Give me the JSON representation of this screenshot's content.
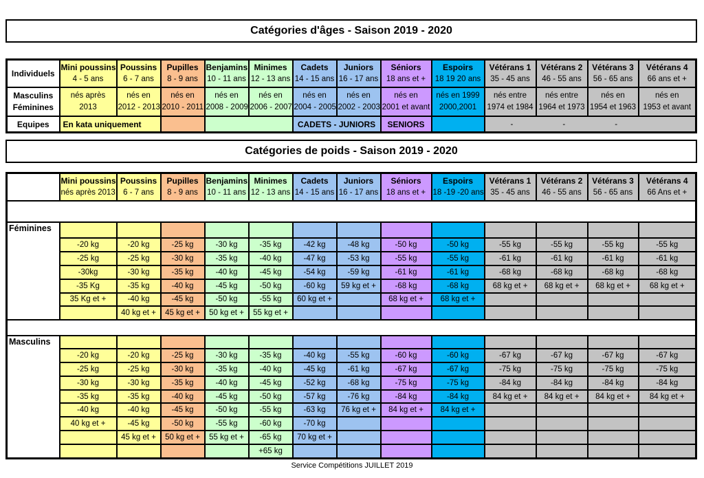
{
  "page": {
    "title_ages": "Catégories d'âges - Saison 2019 - 2020",
    "title_poids": "Catégories de poids - Saison 2019 - 2020",
    "footer": "Service Compétitions JUILLET 2019"
  },
  "colors": {
    "yellow": "#FFFF99",
    "orange": "#FABF8F",
    "green": "#CCFFCC",
    "blue": "#9DC3F0",
    "purple": "#CC99FF",
    "cyan": "#00B0F0",
    "gray": "#C3C3C3",
    "white": "#FFFFFF",
    "border": "#000000"
  },
  "columns": [
    {
      "name": "Mini poussins",
      "color": "yellow",
      "age": "4 - 5 ans",
      "born": [
        "nés après",
        "2013"
      ],
      "poids_sub": "nés après 2013"
    },
    {
      "name": "Poussins",
      "color": "yellow",
      "age": "6 - 7 ans",
      "born": [
        "nés en",
        "2012 - 2013"
      ],
      "poids_sub": "6 - 7 ans"
    },
    {
      "name": "Pupilles",
      "color": "orange",
      "age": "8 - 9 ans",
      "born": [
        "nés en",
        "2010 - 2011"
      ],
      "poids_sub": "8 - 9 ans"
    },
    {
      "name": "Benjamins",
      "color": "green",
      "age": "10 - 11 ans",
      "born": [
        "nés en",
        "2008 - 2009"
      ],
      "poids_sub": "10 - 11 ans"
    },
    {
      "name": "Minimes",
      "color": "green",
      "age": "12 - 13 ans",
      "born": [
        "nés en",
        "2006 - 2007"
      ],
      "poids_sub": "12 - 13 ans"
    },
    {
      "name": "Cadets",
      "color": "blue",
      "age": "14 - 15 ans",
      "born": [
        "nés en",
        "2004 - 2005"
      ],
      "poids_sub": "14 - 15 ans"
    },
    {
      "name": "Juniors",
      "color": "blue",
      "age": "16 - 17 ans",
      "born": [
        "nés en",
        "2002 - 2003"
      ],
      "poids_sub": "16 - 17 ans"
    },
    {
      "name": "Séniors",
      "color": "purple",
      "age": "18 ans et +",
      "born": [
        "nés en",
        "2001 et avant"
      ],
      "poids_sub": "18 ans et +"
    },
    {
      "name": "Espoirs",
      "color": "cyan",
      "age": "18 19 20 ans",
      "born": [
        "nés en 1999",
        "2000,2001"
      ],
      "poids_sub": "18 -19 -20 ans"
    },
    {
      "name": "Vétérans 1",
      "color": "gray",
      "age": "35 - 45 ans",
      "born": [
        "nés entre",
        "1974 et 1984"
      ],
      "poids_sub": "35 - 45 ans"
    },
    {
      "name": "Vétérans 2",
      "color": "gray",
      "age": "46 - 55 ans",
      "born": [
        "nés entre",
        "1964 et 1973"
      ],
      "poids_sub": "46 - 55 ans"
    },
    {
      "name": "Vétérans 3",
      "color": "gray",
      "age": "56 - 65 ans",
      "born": [
        "nés en",
        "1954 et 1963"
      ],
      "poids_sub": "56 - 65 ans"
    },
    {
      "name": "Vétérans 4",
      "color": "gray",
      "age": "66 ans et +",
      "born": [
        "nés en",
        "1953 et avant"
      ],
      "poids_sub": "66 Ans et +"
    }
  ],
  "age_table": {
    "labels": {
      "individuels": "Individuels",
      "masculins": "Masculins",
      "feminines": "Féminines",
      "equipes": "Equipes"
    },
    "equipes_cells": [
      {
        "text": "En kata uniquement",
        "span": 2,
        "color": "yellow",
        "bold": true,
        "align": "left"
      },
      {
        "text": "",
        "span": 1,
        "color": "orange"
      },
      {
        "text": "",
        "span": 2,
        "color": "green"
      },
      {
        "text": "CADETS  -  JUNIORS",
        "span": 2,
        "color": "blue",
        "bold": true
      },
      {
        "text": "SENIORS",
        "span": 1,
        "color": "purple",
        "bold": true
      },
      {
        "text": "",
        "span": 1,
        "color": "cyan"
      },
      {
        "text": "",
        "span": 4,
        "color": "gray",
        "dashes": [
          "-",
          "-",
          "-",
          ""
        ]
      }
    ]
  },
  "weight_table": {
    "sections": [
      {
        "label": "Féminines",
        "rows": [
          [
            "-20 kg",
            "-20 kg",
            "-25 kg",
            "-30 kg",
            "-35 kg",
            "-42 kg",
            "-48 kg",
            "-50 kg",
            "-50 kg",
            "-55 kg",
            "-55 kg",
            "-55 kg",
            "-55 kg"
          ],
          [
            "-25 kg",
            "-25 kg",
            "-30 kg",
            "-35 kg",
            "-40 kg",
            "-47 kg",
            "-53 kg",
            "-55 kg",
            "-55 kg",
            "-61 kg",
            "-61 kg",
            "-61 kg",
            "-61 kg"
          ],
          [
            "-30kg",
            "-30 kg",
            "-35 kg",
            "-40 kg",
            "-45 kg",
            "-54 kg",
            "-59 kg",
            "-61 kg",
            "-61 kg",
            "-68 kg",
            "-68 kg",
            "-68 kg",
            "-68 kg"
          ],
          [
            "-35 Kg",
            "-35 kg",
            "-40 kg",
            "-45 kg",
            "-50 kg",
            "-60 kg",
            "59 kg et +",
            "-68 kg",
            "-68 kg",
            "68 kg et +",
            "68 kg et +",
            "68 kg et +",
            "68 kg et +"
          ],
          [
            "35 Kg et +",
            "-40 kg",
            "-45 kg",
            "-50 kg",
            "-55 kg",
            "60 kg et +",
            "",
            "68 kg et +",
            "68 kg et +",
            "",
            "",
            "",
            ""
          ],
          [
            "",
            "40 kg et +",
            "45 kg et +",
            "50 kg et +",
            "55 kg et +",
            "",
            "",
            "",
            "",
            "",
            "",
            "",
            ""
          ]
        ]
      },
      {
        "label": "Masculins",
        "rows": [
          [
            "-20 kg",
            "-20 kg",
            "-25 kg",
            "-30 kg",
            "-35 kg",
            "-40 kg",
            "-55 kg",
            "-60 kg",
            "-60 kg",
            "-67 kg",
            "-67 kg",
            "-67 kg",
            "-67 kg"
          ],
          [
            "-25 kg",
            "-25 kg",
            "-30 kg",
            "-35 kg",
            "-40 kg",
            "-45 kg",
            "-61 kg",
            "-67 kg",
            "-67 kg",
            "-75 kg",
            "-75 kg",
            "-75 kg",
            "-75 kg"
          ],
          [
            "-30 kg",
            "-30 kg",
            "-35 kg",
            "-40 kg",
            "-45 kg",
            "-52 kg",
            "-68 kg",
            "-75 kg",
            "-75 kg",
            "-84 kg",
            "-84 kg",
            "-84 kg",
            "-84 kg"
          ],
          [
            "-35 kg",
            "-35 kg",
            "-40 kg",
            "-45 kg",
            "-50 kg",
            "-57 kg",
            "-76 kg",
            "-84 kg",
            "-84 kg",
            "84 kg et +",
            "84 kg et +",
            "84 kg et +",
            "84 kg et +"
          ],
          [
            "-40 kg",
            "-40 kg",
            "-45 kg",
            "-50 kg",
            "-55 kg",
            "-63 kg",
            "76 kg et +",
            "84 kg et +",
            "84 kg et +",
            "",
            "",
            "",
            ""
          ],
          [
            "40 kg et +",
            "-45 kg",
            "-50 kg",
            "-55 kg",
            "-60 kg",
            "-70 kg",
            "",
            "",
            "",
            "",
            "",
            "",
            ""
          ],
          [
            "",
            "45 kg et +",
            "50 kg et +",
            "55 kg et +",
            "-65 kg",
            "70 kg et +",
            "",
            "",
            "",
            "",
            "",
            "",
            ""
          ],
          [
            "",
            "",
            "",
            "",
            "+65 kg",
            "",
            "",
            "",
            "",
            "",
            "",
            "",
            ""
          ]
        ]
      }
    ]
  }
}
